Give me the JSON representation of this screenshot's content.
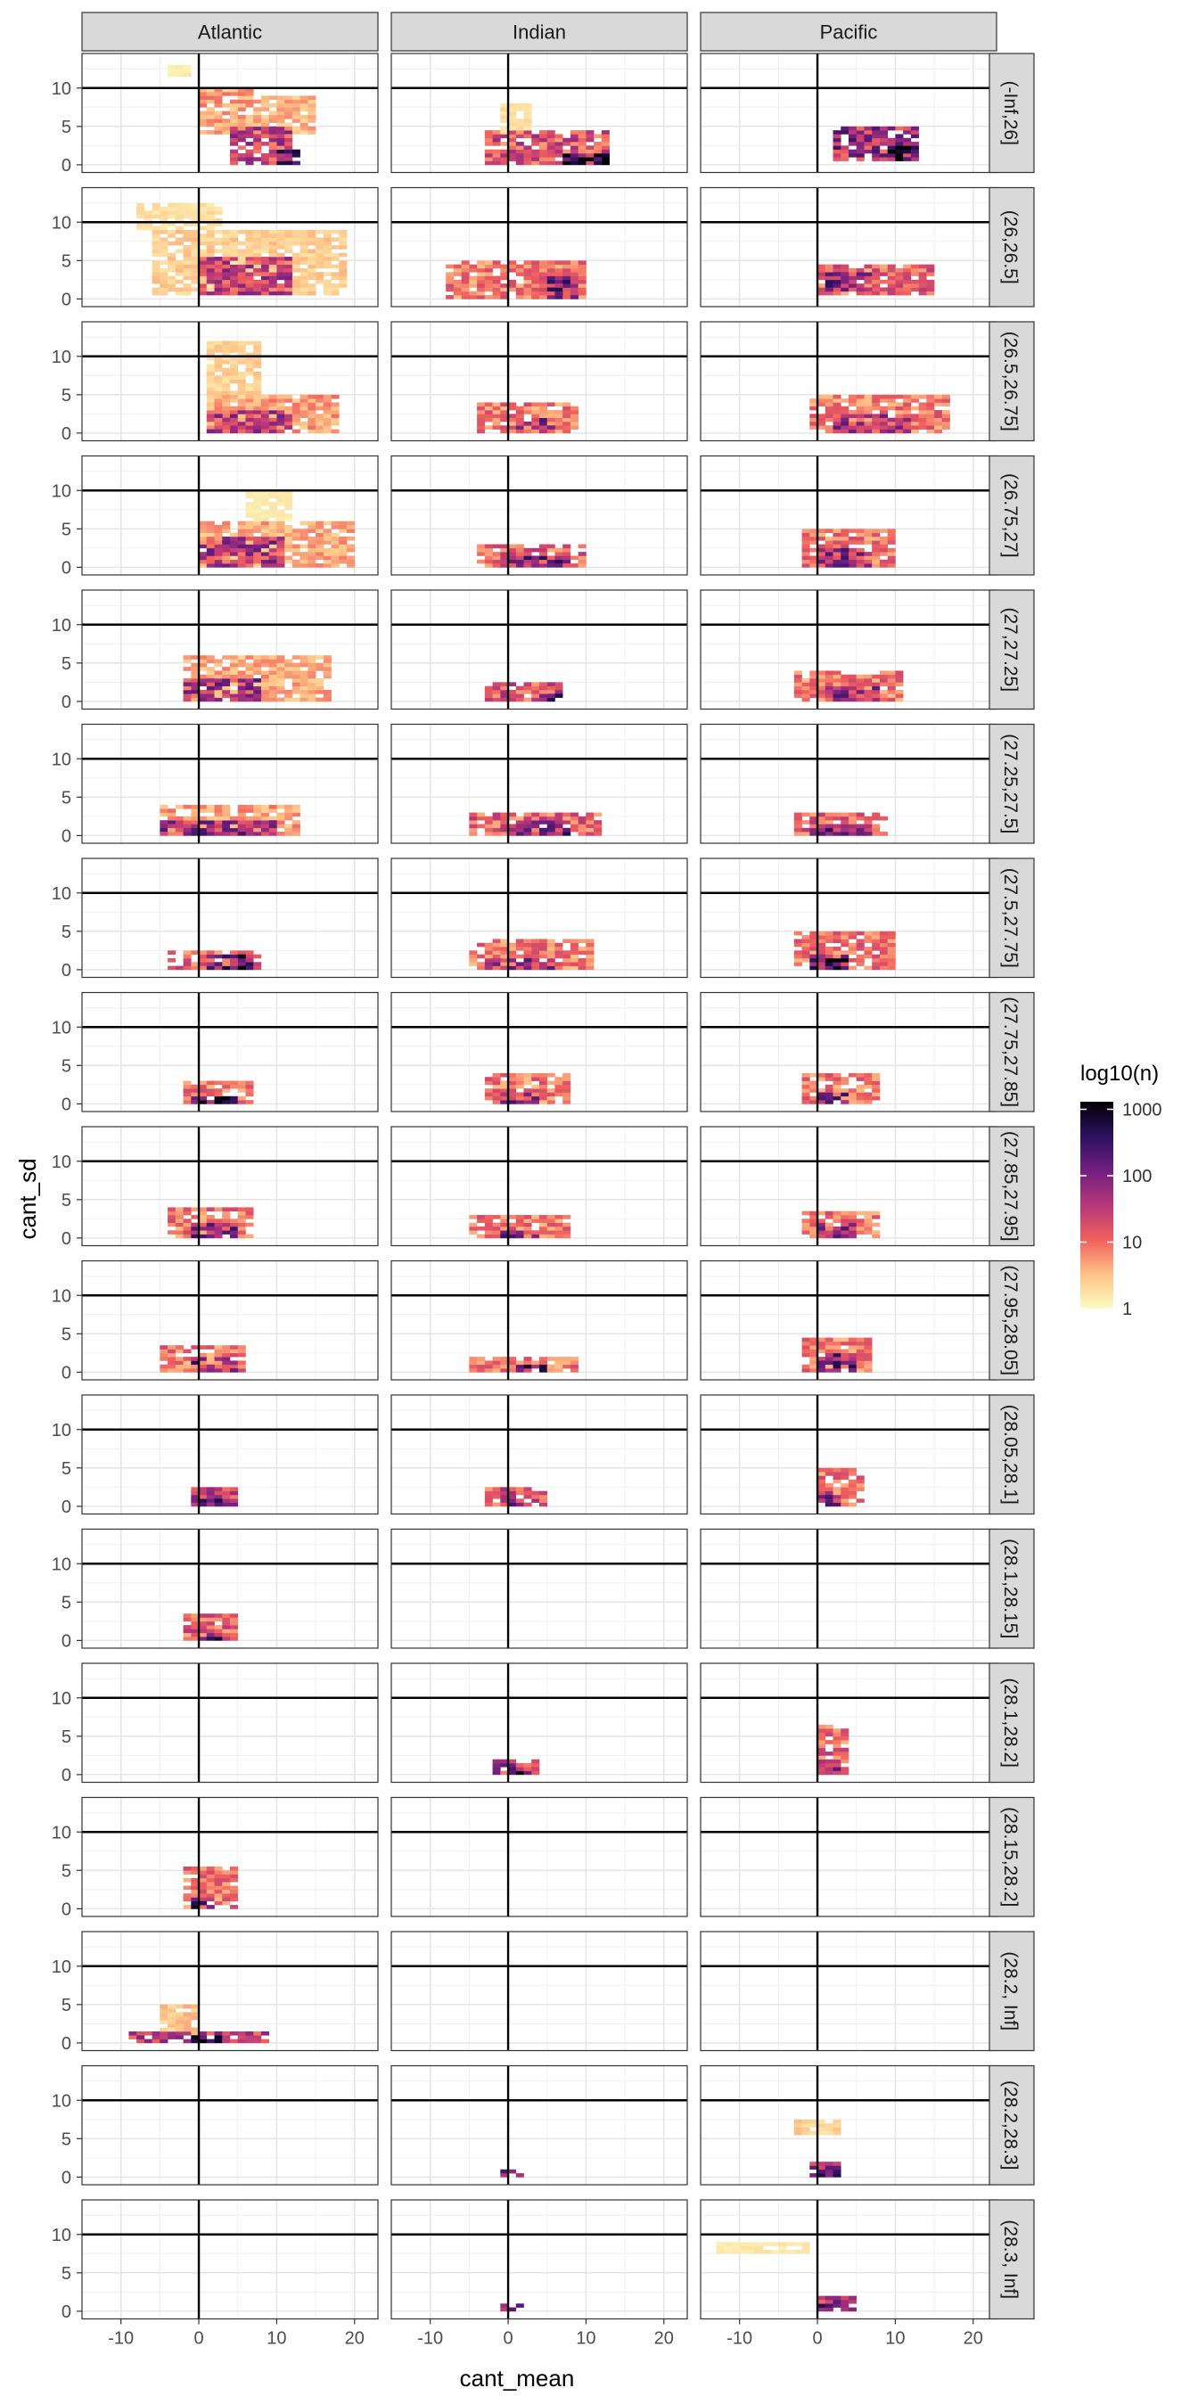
{
  "chart_data": {
    "type": "heatmap",
    "title": "",
    "xlabel": "cant_mean",
    "ylabel": "cant_sd",
    "xlim": [
      -15,
      23
    ],
    "ylim": [
      -1,
      14.5
    ],
    "x_ticks": [
      -10,
      0,
      10,
      20
    ],
    "x_tick_labels": [
      "-10",
      "0",
      "10",
      "20"
    ],
    "y_ticks": [
      0,
      5,
      10
    ],
    "y_tick_labels": [
      "0",
      "5",
      "10"
    ],
    "reference_lines": {
      "vline_x": 0,
      "hline_y": 10
    },
    "grid": true,
    "columns": [
      "Atlantic",
      "Indian",
      "Pacific"
    ],
    "rows": [
      "(-Inf,26]",
      "(26,26.5]",
      "(26.5,26.75]",
      "(26.75,27]",
      "(27,27.25]",
      "(27.25,27.5]",
      "(27.5,27.75]",
      "(27.75,27.85]",
      "(27.85,27.95]",
      "(27.95,28.05]",
      "(28.05,28.1]",
      "(28.1,28.15]",
      "(28.1,28.2]",
      "(28.15,28.2]",
      "(28.2, Inf]",
      "(28.2,28.3]",
      "(28.3, Inf]"
    ],
    "legend": {
      "title": "log10(n)",
      "position": "right",
      "ticks": [
        1,
        10,
        100,
        1000
      ],
      "tick_labels": [
        "1",
        "10",
        "100",
        "1000"
      ],
      "colors": [
        "#fcfdbf",
        "#fec287",
        "#f1605d",
        "#b73779",
        "#721f81",
        "#2c115f",
        "#000004"
      ]
    },
    "cell_size": {
      "x": 1,
      "y": 0.5
    },
    "blobs": [
      [
        [
          {
            "x": [
              -4,
              -1
            ],
            "y": [
              11.5,
              13
            ],
            "d": 0.05
          },
          {
            "x": [
              0,
              7
            ],
            "y": [
              4,
              10
            ],
            "d": 0.22
          },
          {
            "x": [
              7,
              15
            ],
            "y": [
              4,
              9
            ],
            "d": 0.18
          },
          {
            "x": [
              4,
              12
            ],
            "y": [
              0,
              5
            ],
            "d": 0.45
          },
          {
            "x": [
              10,
              13
            ],
            "y": [
              0,
              2
            ],
            "d": 0.85
          }
        ],
        [
          {
            "x": [
              -6,
              19
            ],
            "y": [
              0.5,
              9
            ],
            "d": 0.13
          },
          {
            "x": [
              0,
              12
            ],
            "y": [
              0.5,
              5.5
            ],
            "d": 0.45
          },
          {
            "x": [
              -8,
              3
            ],
            "y": [
              9,
              12.5
            ],
            "d": 0.08
          }
        ],
        [
          {
            "x": [
              1,
              8
            ],
            "y": [
              4,
              12
            ],
            "d": 0.12
          },
          {
            "x": [
              1,
              18
            ],
            "y": [
              0,
              5
            ],
            "d": 0.22
          },
          {
            "x": [
              1,
              12
            ],
            "y": [
              0,
              3
            ],
            "d": 0.48
          }
        ],
        [
          {
            "x": [
              0,
              20
            ],
            "y": [
              0,
              6
            ],
            "d": 0.2
          },
          {
            "x": [
              0,
              11
            ],
            "y": [
              0,
              4
            ],
            "d": 0.5
          },
          {
            "x": [
              6,
              12
            ],
            "y": [
              6,
              10
            ],
            "d": 0.05
          }
        ],
        [
          {
            "x": [
              -2,
              17
            ],
            "y": [
              0,
              6
            ],
            "d": 0.2
          },
          {
            "x": [
              -2,
              8
            ],
            "y": [
              0,
              3
            ],
            "d": 0.52
          }
        ],
        [
          {
            "x": [
              -5,
              13
            ],
            "y": [
              0,
              4
            ],
            "d": 0.22
          },
          {
            "x": [
              -5,
              10
            ],
            "y": [
              0,
              2
            ],
            "d": 0.55
          }
        ],
        [
          {
            "x": [
              -4,
              8
            ],
            "y": [
              0,
              2.5
            ],
            "d": 0.35
          },
          {
            "x": [
              1,
              7
            ],
            "y": [
              0,
              2
            ],
            "d": 0.7
          }
        ],
        [
          {
            "x": [
              -2,
              7
            ],
            "y": [
              0,
              3
            ],
            "d": 0.3
          },
          {
            "x": [
              -1,
              5
            ],
            "y": [
              0,
              1
            ],
            "d": 0.75
          }
        ],
        [
          {
            "x": [
              -4,
              7
            ],
            "y": [
              0,
              4
            ],
            "d": 0.3
          },
          {
            "x": [
              -1,
              5
            ],
            "y": [
              0,
              2
            ],
            "d": 0.55
          }
        ],
        [
          {
            "x": [
              -5,
              6
            ],
            "y": [
              0,
              3.5
            ],
            "d": 0.3
          },
          {
            "x": [
              -1,
              5
            ],
            "y": [
              0,
              2
            ],
            "d": 0.6
          }
        ],
        [
          {
            "x": [
              -1,
              5
            ],
            "y": [
              0,
              2.5
            ],
            "d": 0.5
          },
          {
            "x": [
              0,
              3
            ],
            "y": [
              0,
              1
            ],
            "d": 0.7
          }
        ],
        [
          {
            "x": [
              -2,
              5
            ],
            "y": [
              0,
              3.5
            ],
            "d": 0.35
          },
          {
            "x": [
              0,
              3
            ],
            "y": [
              0,
              1
            ],
            "d": 0.7
          }
        ],
        [],
        [
          {
            "x": [
              -2,
              5
            ],
            "y": [
              0,
              5.5
            ],
            "d": 0.3
          },
          {
            "x": [
              -1,
              2
            ],
            "y": [
              0,
              1.5
            ],
            "d": 0.8
          }
        ],
        [
          {
            "x": [
              -9,
              9
            ],
            "y": [
              0,
              1.5
            ],
            "d": 0.45
          },
          {
            "x": [
              -5,
              0
            ],
            "y": [
              1,
              5
            ],
            "d": 0.15
          },
          {
            "x": [
              -1,
              3
            ],
            "y": [
              0,
              1
            ],
            "d": 0.85
          }
        ],
        [],
        []
      ],
      [
        [
          {
            "x": [
              -3,
              13
            ],
            "y": [
              0,
              4.5
            ],
            "d": 0.4
          },
          {
            "x": [
              7,
              13
            ],
            "y": [
              0,
              1.5
            ],
            "d": 0.85
          },
          {
            "x": [
              -1,
              3
            ],
            "y": [
              4,
              8
            ],
            "d": 0.08
          }
        ],
        [
          {
            "x": [
              -8,
              10
            ],
            "y": [
              0,
              5
            ],
            "d": 0.3
          },
          {
            "x": [
              5,
              9
            ],
            "y": [
              0,
              3.5
            ],
            "d": 0.6
          }
        ],
        [
          {
            "x": [
              -4,
              9
            ],
            "y": [
              0,
              4
            ],
            "d": 0.3
          },
          {
            "x": [
              1,
              6
            ],
            "y": [
              0,
              2
            ],
            "d": 0.55
          }
        ],
        [
          {
            "x": [
              -4,
              10
            ],
            "y": [
              0,
              3
            ],
            "d": 0.35
          },
          {
            "x": [
              0,
              8
            ],
            "y": [
              0,
              1.5
            ],
            "d": 0.6
          }
        ],
        [
          {
            "x": [
              -3,
              7
            ],
            "y": [
              0,
              2.5
            ],
            "d": 0.4
          },
          {
            "x": [
              4,
              7
            ],
            "y": [
              0,
              1
            ],
            "d": 0.8
          }
        ],
        [
          {
            "x": [
              -5,
              12
            ],
            "y": [
              0,
              3
            ],
            "d": 0.35
          },
          {
            "x": [
              0,
              8
            ],
            "y": [
              0,
              2
            ],
            "d": 0.6
          }
        ],
        [
          {
            "x": [
              -5,
              11
            ],
            "y": [
              0,
              4
            ],
            "d": 0.3
          },
          {
            "x": [
              -3,
              6
            ],
            "y": [
              0,
              1.5
            ],
            "d": 0.55
          }
        ],
        [
          {
            "x": [
              -3,
              8
            ],
            "y": [
              0,
              4
            ],
            "d": 0.3
          },
          {
            "x": [
              -1,
              4
            ],
            "y": [
              0,
              1.5
            ],
            "d": 0.55
          }
        ],
        [
          {
            "x": [
              -5,
              8
            ],
            "y": [
              0,
              3
            ],
            "d": 0.3
          },
          {
            "x": [
              -1,
              4
            ],
            "y": [
              0,
              1
            ],
            "d": 0.6
          }
        ],
        [
          {
            "x": [
              -5,
              9
            ],
            "y": [
              0,
              2
            ],
            "d": 0.3
          },
          {
            "x": [
              1,
              5
            ],
            "y": [
              0,
              1
            ],
            "d": 0.7
          }
        ],
        [
          {
            "x": [
              -3,
              5
            ],
            "y": [
              0,
              2.5
            ],
            "d": 0.4
          },
          {
            "x": [
              -1,
              2
            ],
            "y": [
              0,
              1
            ],
            "d": 0.6
          }
        ],
        [],
        [
          {
            "x": [
              -2,
              4
            ],
            "y": [
              0,
              2
            ],
            "d": 0.5
          },
          {
            "x": [
              0,
              2
            ],
            "y": [
              0,
              1
            ],
            "d": 0.8
          }
        ],
        [],
        [],
        [
          {
            "x": [
              -1,
              2
            ],
            "y": [
              0,
              1
            ],
            "d": 0.6
          }
        ],
        [
          {
            "x": [
              -1,
              2
            ],
            "y": [
              0,
              1
            ],
            "d": 0.6
          }
        ]
      ],
      [
        [
          {
            "x": [
              2,
              13
            ],
            "y": [
              0.5,
              5
            ],
            "d": 0.55
          },
          {
            "x": [
              9,
              13
            ],
            "y": [
              0.5,
              2.5
            ],
            "d": 0.85
          }
        ],
        [
          {
            "x": [
              0,
              15
            ],
            "y": [
              0.5,
              4.5
            ],
            "d": 0.35
          },
          {
            "x": [
              1,
              7
            ],
            "y": [
              1,
              3.5
            ],
            "d": 0.6
          }
        ],
        [
          {
            "x": [
              -1,
              17
            ],
            "y": [
              0,
              5
            ],
            "d": 0.3
          },
          {
            "x": [
              2,
              12
            ],
            "y": [
              0,
              2.5
            ],
            "d": 0.5
          }
        ],
        [
          {
            "x": [
              -2,
              10
            ],
            "y": [
              0,
              5
            ],
            "d": 0.3
          },
          {
            "x": [
              0,
              7
            ],
            "y": [
              0,
              2.5
            ],
            "d": 0.55
          }
        ],
        [
          {
            "x": [
              -3,
              11
            ],
            "y": [
              0,
              4
            ],
            "d": 0.3
          },
          {
            "x": [
              0,
              8
            ],
            "y": [
              0,
              2
            ],
            "d": 0.55
          }
        ],
        [
          {
            "x": [
              -3,
              9
            ],
            "y": [
              0,
              3
            ],
            "d": 0.35
          },
          {
            "x": [
              -1,
              8
            ],
            "y": [
              0,
              1.5
            ],
            "d": 0.6
          }
        ],
        [
          {
            "x": [
              -3,
              10
            ],
            "y": [
              0,
              5
            ],
            "d": 0.3
          },
          {
            "x": [
              -1,
              4
            ],
            "y": [
              0,
              2
            ],
            "d": 0.75
          }
        ],
        [
          {
            "x": [
              -2,
              8
            ],
            "y": [
              0,
              4
            ],
            "d": 0.3
          },
          {
            "x": [
              0,
              4
            ],
            "y": [
              0,
              1.5
            ],
            "d": 0.6
          }
        ],
        [
          {
            "x": [
              -2,
              8
            ],
            "y": [
              0,
              3.5
            ],
            "d": 0.3
          },
          {
            "x": [
              0,
              5
            ],
            "y": [
              0,
              2
            ],
            "d": 0.6
          }
        ],
        [
          {
            "x": [
              -2,
              7
            ],
            "y": [
              0,
              4.5
            ],
            "d": 0.3
          },
          {
            "x": [
              0,
              5
            ],
            "y": [
              0,
              2.5
            ],
            "d": 0.6
          }
        ],
        [
          {
            "x": [
              0,
              6
            ],
            "y": [
              0,
              5
            ],
            "d": 0.3
          },
          {
            "x": [
              0,
              3
            ],
            "y": [
              0,
              2
            ],
            "d": 0.6
          }
        ],
        [],
        [
          {
            "x": [
              0,
              4
            ],
            "y": [
              0,
              6.5
            ],
            "d": 0.35
          },
          {
            "x": [
              0,
              3
            ],
            "y": [
              0,
              2
            ],
            "d": 0.6
          }
        ],
        [],
        [],
        [
          {
            "x": [
              -3,
              3
            ],
            "y": [
              5.5,
              7.5
            ],
            "d": 0.12
          },
          {
            "x": [
              -1,
              3
            ],
            "y": [
              0,
              2
            ],
            "d": 0.6
          },
          {
            "x": [
              0,
              1
            ],
            "y": [
              0,
              0.5
            ],
            "d": 0.95
          }
        ],
        [
          {
            "x": [
              -13,
              -1
            ],
            "y": [
              7.5,
              9
            ],
            "d": 0.06
          },
          {
            "x": [
              0,
              5
            ],
            "y": [
              0,
              2
            ],
            "d": 0.55
          },
          {
            "x": [
              0,
              2
            ],
            "y": [
              0,
              1
            ],
            "d": 0.8
          }
        ]
      ]
    ]
  }
}
